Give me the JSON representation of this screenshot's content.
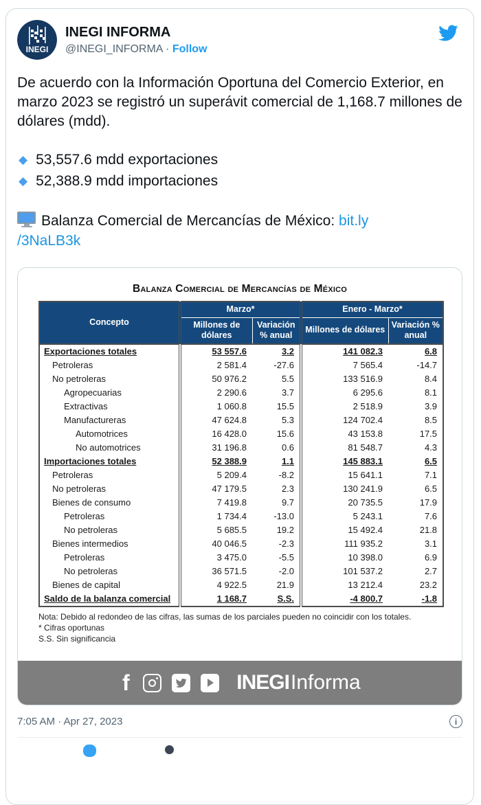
{
  "colors": {
    "accent": "#1d9bf0",
    "table_header_navy": "#15497d",
    "footer_bar_gray": "#7e7e7e",
    "avatar_navy": "#153860",
    "bullet_diamond_blue": "#4a9ff0"
  },
  "tweet": {
    "author": {
      "name": "INEGI INFORMA",
      "handle": "@INEGI_INFORMA",
      "separator": "·",
      "follow_label": "Follow",
      "avatar_text": "INEGI"
    },
    "icons": {
      "brand_bird": "twitter-bird",
      "bullet": "small-blue-diamond",
      "link_emoji": "desktop-computer",
      "info": "info-circle"
    },
    "body": {
      "paragraph": "De acuerdo con la Información Oportuna del Comercio Exterior, en marzo 2023 se registró un superávit comercial de 1,168.7 millones de dólares (mdd).",
      "bullets": [
        "53,557.6 mdd exportaciones",
        "52,388.9 mdd importaciones"
      ],
      "link_prefix": "Balanza Comercial de Mercancías de México:",
      "link_line1": "bit.ly",
      "link_line2": "/3NaLB3k"
    },
    "timestamp": "7:05 AM · Apr 27, 2023"
  },
  "media": {
    "title": "Balanza Comercial de Mercancías de México",
    "table": {
      "header": {
        "concepto": "Concepto",
        "groups": [
          {
            "label": "Marzo*",
            "cols": [
              "Millones de dólares",
              "Variación % anual"
            ]
          },
          {
            "label": "Enero - Marzo*",
            "cols": [
              "Millones de dólares",
              "Variación % anual"
            ]
          }
        ]
      },
      "rows": [
        {
          "label": "Exportaciones totales",
          "indent": 0,
          "bold": true,
          "values": [
            "53 557.6",
            "3.2",
            "141 082.3",
            "6.8"
          ]
        },
        {
          "label": "Petroleras",
          "indent": 1,
          "bold": false,
          "values": [
            "2 581.4",
            "-27.6",
            "7 565.4",
            "-14.7"
          ]
        },
        {
          "label": "No petroleras",
          "indent": 1,
          "bold": false,
          "values": [
            "50 976.2",
            "5.5",
            "133 516.9",
            "8.4"
          ]
        },
        {
          "label": "Agropecuarias",
          "indent": 2,
          "bold": false,
          "values": [
            "2 290.6",
            "3.7",
            "6 295.6",
            "8.1"
          ]
        },
        {
          "label": "Extractivas",
          "indent": 2,
          "bold": false,
          "values": [
            "1 060.8",
            "15.5",
            "2 518.9",
            "3.9"
          ]
        },
        {
          "label": "Manufactureras",
          "indent": 2,
          "bold": false,
          "values": [
            "47 624.8",
            "5.3",
            "124 702.4",
            "8.5"
          ]
        },
        {
          "label": "Automotrices",
          "indent": 3,
          "bold": false,
          "values": [
            "16 428.0",
            "15.6",
            "43 153.8",
            "17.5"
          ]
        },
        {
          "label": "No automotrices",
          "indent": 3,
          "bold": false,
          "values": [
            "31 196.8",
            "0.6",
            "81 548.7",
            "4.3"
          ]
        },
        {
          "label": "Importaciones totales",
          "indent": 0,
          "bold": true,
          "values": [
            "52 388.9",
            "1.1",
            "145 883.1",
            "6.5"
          ]
        },
        {
          "label": "Petroleras",
          "indent": 1,
          "bold": false,
          "values": [
            "5 209.4",
            "-8.2",
            "15 641.1",
            "7.1"
          ]
        },
        {
          "label": "No petroleras",
          "indent": 1,
          "bold": false,
          "values": [
            "47 179.5",
            "2.3",
            "130 241.9",
            "6.5"
          ]
        },
        {
          "label": "Bienes de consumo",
          "indent": 1,
          "bold": false,
          "values": [
            "7 419.8",
            "9.7",
            "20 735.5",
            "17.9"
          ]
        },
        {
          "label": "Petroleras",
          "indent": 2,
          "bold": false,
          "values": [
            "1 734.4",
            "-13.0",
            "5 243.1",
            "7.6"
          ]
        },
        {
          "label": "No petroleras",
          "indent": 2,
          "bold": false,
          "values": [
            "5 685.5",
            "19.2",
            "15 492.4",
            "21.8"
          ]
        },
        {
          "label": "Bienes intermedios",
          "indent": 1,
          "bold": false,
          "values": [
            "40 046.5",
            "-2.3",
            "111 935.2",
            "3.1"
          ]
        },
        {
          "label": "Petroleras",
          "indent": 2,
          "bold": false,
          "values": [
            "3 475.0",
            "-5.5",
            "10 398.0",
            "6.9"
          ]
        },
        {
          "label": "No petroleras",
          "indent": 2,
          "bold": false,
          "values": [
            "36 571.5",
            "-2.0",
            "101 537.2",
            "2.7"
          ]
        },
        {
          "label": "Bienes de capital",
          "indent": 1,
          "bold": false,
          "values": [
            "4 922.5",
            "21.9",
            "13 212.4",
            "23.2"
          ]
        },
        {
          "label": "Saldo de la balanza comercial",
          "indent": 0,
          "bold": true,
          "values": [
            "1 168.7",
            "S.S.",
            "-4 800.7",
            "-1.8"
          ]
        }
      ]
    },
    "notes": [
      "Nota: Debido al redondeo de las cifras, las sumas de los parciales pueden no coincidir con los totales.",
      "* Cifras oportunas",
      "S.S. Sin significancia"
    ],
    "footer": {
      "icons": [
        "facebook",
        "instagram",
        "twitter",
        "youtube"
      ],
      "brand_bold": "INEGI",
      "brand_light": "Informa"
    }
  }
}
